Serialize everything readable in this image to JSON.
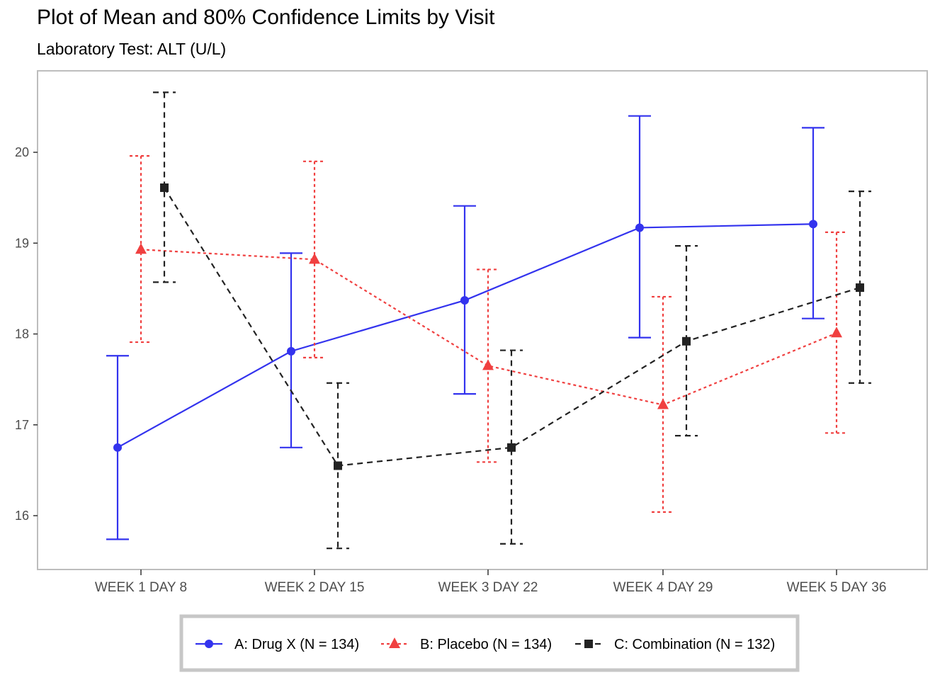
{
  "chart_data": {
    "type": "line",
    "title": "Plot of Mean and 80% Confidence Limits by Visit",
    "subtitle": "Laboratory Test: ALT (U/L)",
    "xlabel": "",
    "ylabel": "",
    "categories": [
      "WEEK 1 DAY 8",
      "WEEK 2 DAY 15",
      "WEEK 3 DAY 22",
      "WEEK 4 DAY 29",
      "WEEK 5 DAY 36"
    ],
    "ylim": [
      15.4,
      20.9
    ],
    "yticks": [
      "16",
      "17",
      "18",
      "19",
      "20"
    ],
    "grid": false,
    "legend_position": "bottom",
    "series": [
      {
        "name": "A: Drug X (N = 134)",
        "color": "#3333ee",
        "marker": "circle",
        "linestyle": "solid",
        "mean": [
          16.75,
          17.81,
          18.37,
          19.17,
          19.21
        ],
        "lower": [
          15.74,
          16.75,
          17.34,
          17.96,
          18.17
        ],
        "upper": [
          17.76,
          18.89,
          19.41,
          20.4,
          20.27
        ]
      },
      {
        "name": "B: Placebo (N = 134)",
        "color": "#f04040",
        "marker": "triangle",
        "linestyle": "dotted",
        "mean": [
          18.93,
          18.82,
          17.65,
          17.22,
          18.01
        ],
        "lower": [
          17.91,
          17.74,
          16.59,
          16.04,
          16.91
        ],
        "upper": [
          19.96,
          19.9,
          18.71,
          18.41,
          19.12
        ]
      },
      {
        "name": "C: Combination (N = 132)",
        "color": "#222222",
        "marker": "square",
        "linestyle": "dashed",
        "mean": [
          19.61,
          16.55,
          16.75,
          17.92,
          18.51
        ],
        "lower": [
          18.57,
          15.64,
          15.69,
          16.88,
          17.46
        ],
        "upper": [
          20.66,
          17.46,
          17.82,
          18.97,
          19.57
        ]
      }
    ]
  }
}
